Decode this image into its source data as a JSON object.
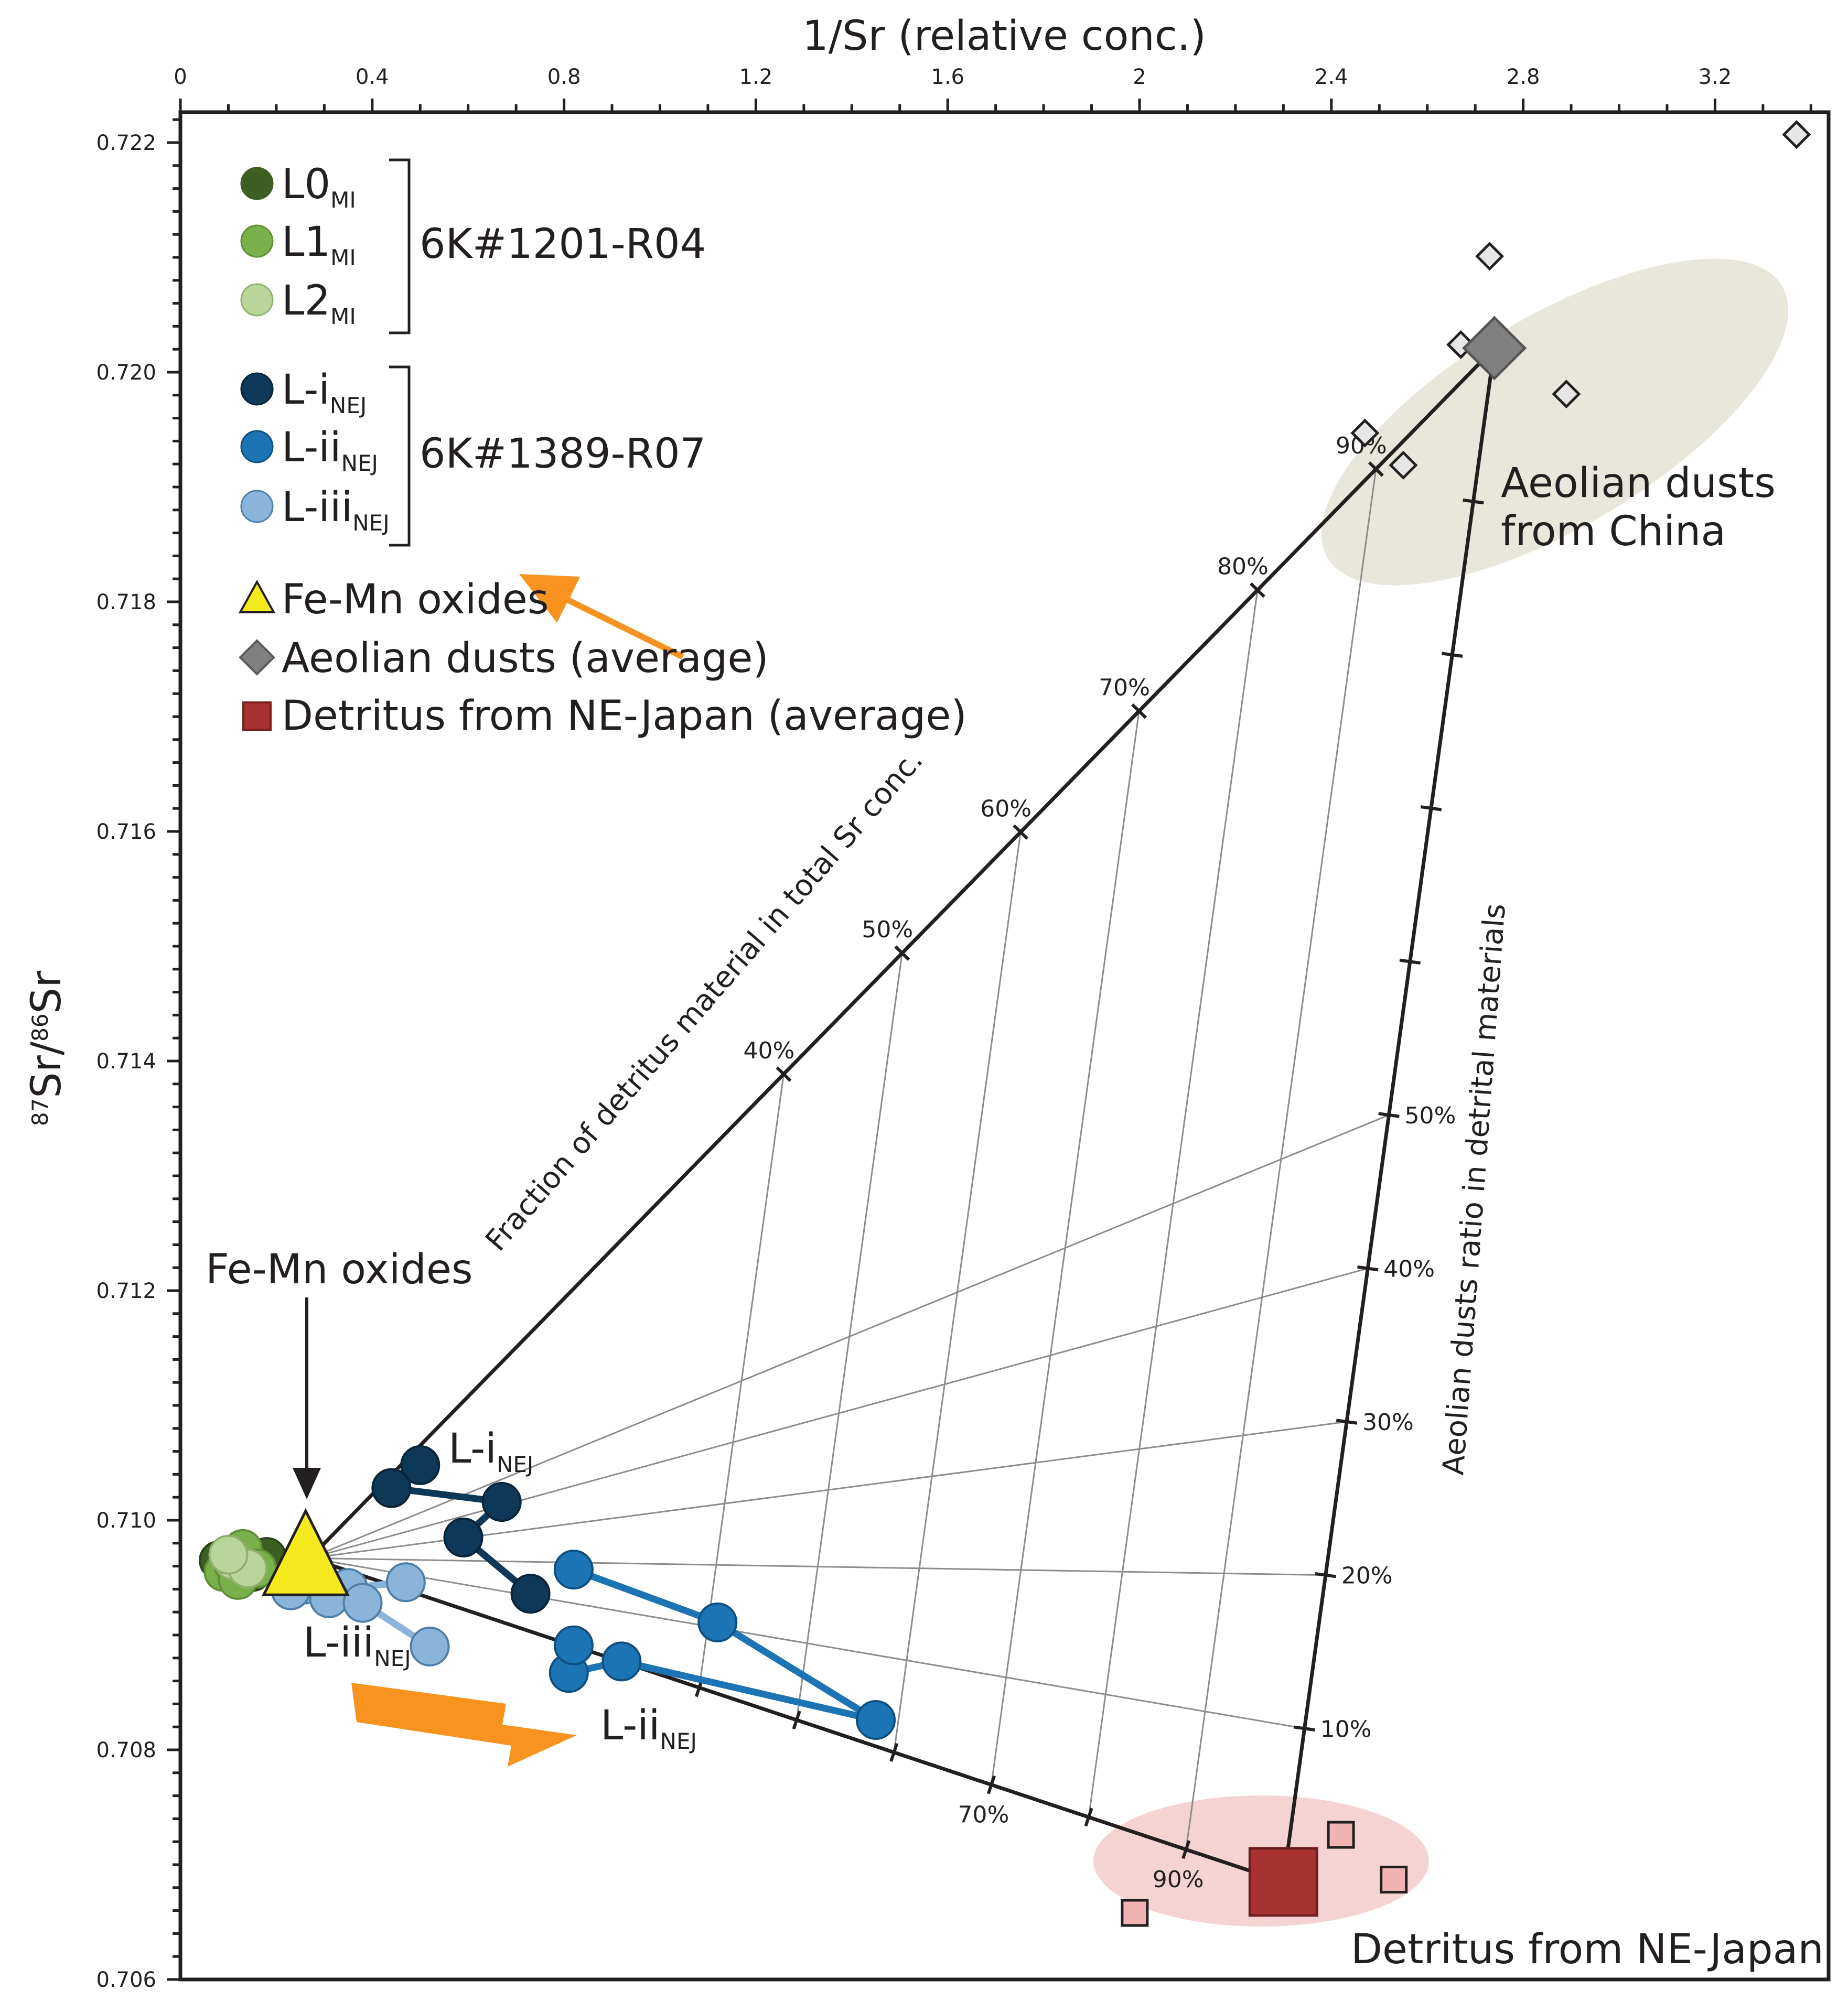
{
  "chart_data": {
    "type": "scatter",
    "title": "",
    "xlabel": "1/Sr (relative conc.)",
    "ylabel_sup1": "87",
    "ylabel_mid": "Sr/",
    "ylabel_sup2": "86",
    "ylabel_end": "Sr",
    "xlim": [
      0,
      3.42
    ],
    "ylim": [
      0.706,
      0.7223
    ],
    "x_ticks": [
      "0",
      "0.4",
      "0.8",
      "1.2",
      "1.6",
      "2",
      "2.4",
      "2.8",
      "3.2"
    ],
    "x_tick_values": [
      0,
      0.4,
      0.8,
      1.2,
      1.6,
      2.0,
      2.4,
      2.8,
      3.2
    ],
    "y_ticks": [
      "0.706",
      "0.708",
      "0.710",
      "0.712",
      "0.714",
      "0.716",
      "0.718",
      "0.720",
      "0.722"
    ],
    "y_tick_values": [
      0.706,
      0.708,
      0.71,
      0.712,
      0.714,
      0.716,
      0.718,
      0.72,
      0.722
    ],
    "colors": {
      "L0": "#3d5f22",
      "L1": "#7ab04a",
      "L2": "#b9d69a",
      "Li": "#0d3857",
      "Lii": "#1c74b4",
      "Liii": "#8bb4da",
      "feMn": "#f4ea1e",
      "aeolian": "#808080",
      "detritus": "#a83232",
      "aeolianEllipse": "#e9e6db",
      "detritusEllipse": "#f6d3d3",
      "arrow": "#f7931e",
      "frame": "#231f20",
      "grid": "#8c8c8c"
    },
    "legend": {
      "L0_main": "L0",
      "L0_sub": "MI",
      "L1_main": "L1",
      "L1_sub": "MI",
      "L2_main": "L2",
      "L2_sub": "MI",
      "Li_main": "L-i",
      "Li_sub": "NEJ",
      "Lii_main": "L-ii",
      "Lii_sub": "NEJ",
      "Liii_main": "L-iii",
      "Liii_sub": "NEJ",
      "group1": "6K#1201-R04",
      "group2": "6K#1389-R07",
      "feMn": "Fe-Mn oxides",
      "aeolian": "Aeolian dusts (average)",
      "detritus": "Detritus from NE-Japan (average)"
    },
    "annotations": {
      "aeolian_line1": "Aeolian dusts",
      "aeolian_line2": "from China",
      "detritus_region": "Detritus from NE-Japan",
      "femn_label": "Fe-Mn oxides",
      "fraction_axis": "Fraction of detritus material in total Sr conc.",
      "ratio_axis": "Aeolian dusts ratio in detrital materials",
      "Li_main": "L-i",
      "Li_sub": "NEJ",
      "Lii_main": "L-ii",
      "Lii_sub": "NEJ",
      "Liii_main": "L-iii",
      "Liii_sub": "NEJ"
    },
    "end_members": {
      "fe_mn": {
        "x": 0.27,
        "y": 0.70967
      },
      "aeolian_avg": {
        "x": 2.74,
        "y": 0.72021
      },
      "detritus_avg": {
        "x": 2.3,
        "y": 0.70685
      }
    },
    "aeolian_points": {
      "x": [
        3.37,
        2.73,
        2.67,
        2.89,
        2.47,
        2.55
      ],
      "y": [
        0.72207,
        0.72101,
        0.72024,
        0.71981,
        0.71947,
        0.71919
      ]
    },
    "detritus_points": {
      "x": [
        2.42,
        2.53,
        1.99
      ],
      "y": [
        0.70726,
        0.70687,
        0.70658
      ]
    },
    "fraction_labels_upper": [
      "40%",
      "50%",
      "60%",
      "70%",
      "80%",
      "90%"
    ],
    "fraction_values_upper": [
      0.4,
      0.5,
      0.6,
      0.7,
      0.8,
      0.9
    ],
    "fraction_labels_lower": [
      "70%",
      "90%"
    ],
    "fraction_values_lower": [
      0.7,
      0.9
    ],
    "ratio_labels": [
      "10%",
      "20%",
      "30%",
      "40%",
      "50%"
    ],
    "ratio_values": [
      0.1,
      0.2,
      0.3,
      0.4,
      0.5
    ],
    "ratio_ticks_all": [
      0.1,
      0.2,
      0.3,
      0.4,
      0.5,
      0.6,
      0.7,
      0.8,
      0.9
    ],
    "series": [
      {
        "name": "L0 MI",
        "key": "L0",
        "connected": false,
        "x": [
          0.08,
          0.1,
          0.12,
          0.15,
          0.18
        ],
        "y": [
          0.70965,
          0.70958,
          0.70962,
          0.70955,
          0.70968
        ]
      },
      {
        "name": "L1 MI",
        "key": "L1",
        "connected": false,
        "x": [
          0.09,
          0.11,
          0.13,
          0.16,
          0.12
        ],
        "y": [
          0.70955,
          0.70962,
          0.70975,
          0.70958,
          0.70948
        ]
      },
      {
        "name": "L2 MI",
        "key": "L2",
        "connected": false,
        "x": [
          0.11,
          0.14,
          0.1
        ],
        "y": [
          0.70965,
          0.70958,
          0.7097
        ]
      },
      {
        "name": "L-i NEJ",
        "key": "Li",
        "connected": true,
        "x": [
          0.5,
          0.44,
          0.67,
          0.59,
          0.73
        ],
        "y": [
          0.71048,
          0.71028,
          0.71016,
          0.70985,
          0.70936
        ]
      },
      {
        "name": "L-ii NEJ",
        "key": "Lii",
        "connected": true,
        "x": [
          0.82,
          1.12,
          1.45,
          0.92,
          0.81,
          0.82
        ],
        "y": [
          0.70957,
          0.70911,
          0.70826,
          0.70877,
          0.70867,
          0.70891
        ]
      },
      {
        "name": "L-iii NEJ",
        "key": "Liii",
        "connected": true,
        "x": [
          0.47,
          0.35,
          0.26,
          0.23,
          0.31,
          0.38,
          0.52
        ],
        "y": [
          0.70946,
          0.70941,
          0.70944,
          0.70939,
          0.70932,
          0.70928,
          0.7089
        ]
      }
    ]
  }
}
